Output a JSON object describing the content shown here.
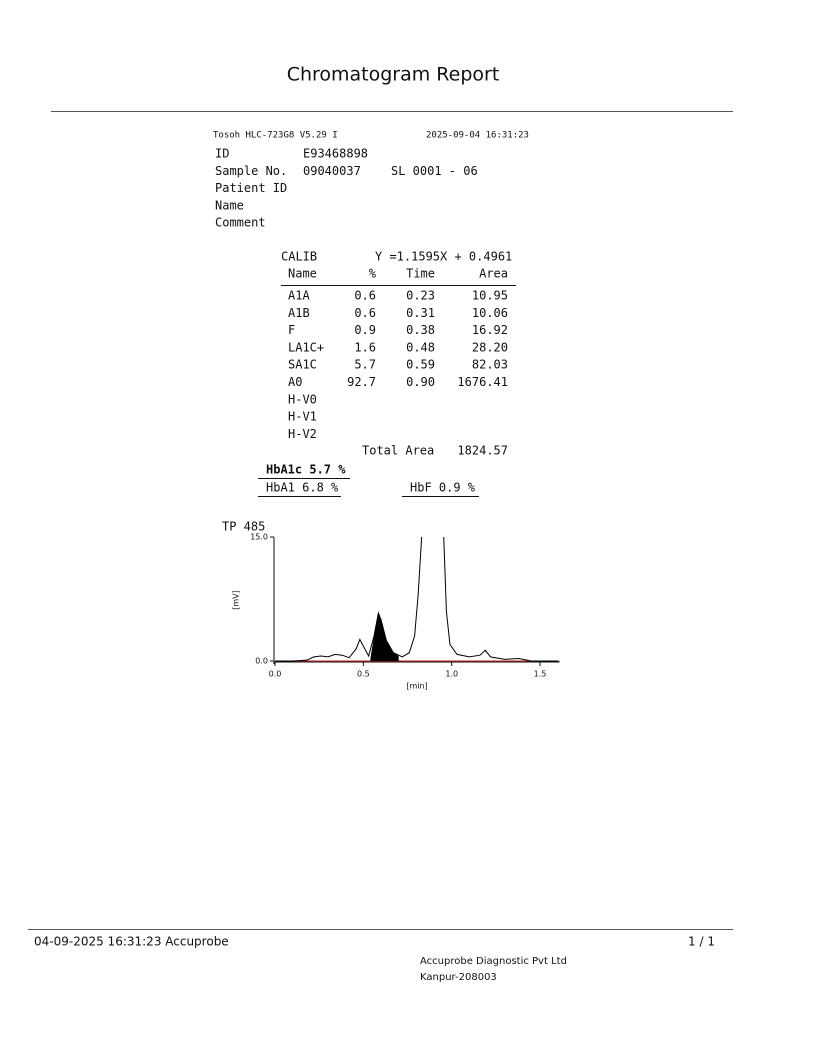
{
  "header": {
    "title": "Chromatogram Report"
  },
  "report": {
    "instrument": "Tosoh HLC-723G8  V5.29  I",
    "datetime": "2025-09-04 16:31:23",
    "fields": [
      {
        "label": "ID",
        "value": "E93468898"
      },
      {
        "label": "Sample No.",
        "value": "09040037",
        "extra": "SL 0001 - 06"
      },
      {
        "label": "Patient ID"
      },
      {
        "label": "Name"
      },
      {
        "label": "Comment"
      }
    ],
    "calib": {
      "label": "CALIB",
      "equation": "Y =1.1595X + 0.4961"
    },
    "table": {
      "columns": [
        "Name",
        "%",
        "Time",
        "Area"
      ],
      "rows": [
        [
          "A1A",
          "0.6",
          "0.23",
          "10.95"
        ],
        [
          "A1B",
          "0.6",
          "0.31",
          "10.06"
        ],
        [
          "F",
          "0.9",
          "0.38",
          "16.92"
        ],
        [
          "LA1C+",
          "1.6",
          "0.48",
          "28.20"
        ],
        [
          "SA1C",
          "5.7",
          "0.59",
          "82.03"
        ],
        [
          "A0",
          "92.7",
          "0.90",
          "1676.41"
        ],
        [
          "H-V0"
        ],
        [
          "H-V1"
        ],
        [
          "H-V2"
        ]
      ]
    },
    "total": {
      "label": "Total Area",
      "value": "1824.57"
    },
    "hba1c": "HbA1c 5.7 %",
    "hba1": "HbA1 6.8 %",
    "hbf": "HbF 0.9 %"
  },
  "chromatogram": {
    "type": "line",
    "label": "TP  485",
    "x_label": "[min]",
    "y_label": "[mV]",
    "xlim": [
      0,
      1.61
    ],
    "ylim": [
      0,
      15
    ],
    "xticks": [
      {
        "value": 0,
        "label": "0.0"
      },
      {
        "value": 0.5,
        "label": "0.5"
      },
      {
        "value": 1,
        "label": "1.0"
      },
      {
        "value": 1.5,
        "label": "1.5"
      }
    ],
    "yticks": [
      {
        "value": 0,
        "label": "0.0"
      },
      {
        "value": 15,
        "label": "15.0"
      }
    ],
    "color": "#000000",
    "baseline_color": "#cc2222",
    "x": [
      0,
      0.1,
      0.18,
      0.22,
      0.26,
      0.3,
      0.34,
      0.38,
      0.42,
      0.46,
      0.48,
      0.5,
      0.53,
      0.56,
      0.585,
      0.6,
      0.63,
      0.67,
      0.72,
      0.76,
      0.79,
      0.81,
      0.83,
      0.9,
      0.955,
      0.97,
      0.99,
      1.03,
      1.1,
      1.16,
      1.19,
      1.22,
      1.3,
      1.38,
      1.45,
      1.6
    ],
    "values": [
      0,
      0,
      0.1,
      0.5,
      0.6,
      0.5,
      0.8,
      0.7,
      0.4,
      1.5,
      2.6,
      1.8,
      0.6,
      3.0,
      5.8,
      5.0,
      2.5,
      1.0,
      0.5,
      1.0,
      3.0,
      8.0,
      15,
      null,
      15,
      6,
      2.0,
      0.8,
      0.5,
      0.7,
      1.3,
      0.5,
      0.2,
      0.3,
      0,
      0
    ],
    "filled_peak": {
      "x": [
        0.54,
        0.56,
        0.585,
        0.6,
        0.63,
        0.67,
        0.7
      ],
      "values": [
        0.3,
        3.0,
        5.8,
        5.0,
        2.5,
        1.0,
        0.6
      ]
    }
  },
  "footer": {
    "printed": "04-09-2025 16:31:23  Accuprobe",
    "page": "1 / 1",
    "company": "Accuprobe Diagnostic Pvt Ltd",
    "address": "Kanpur-208003"
  }
}
